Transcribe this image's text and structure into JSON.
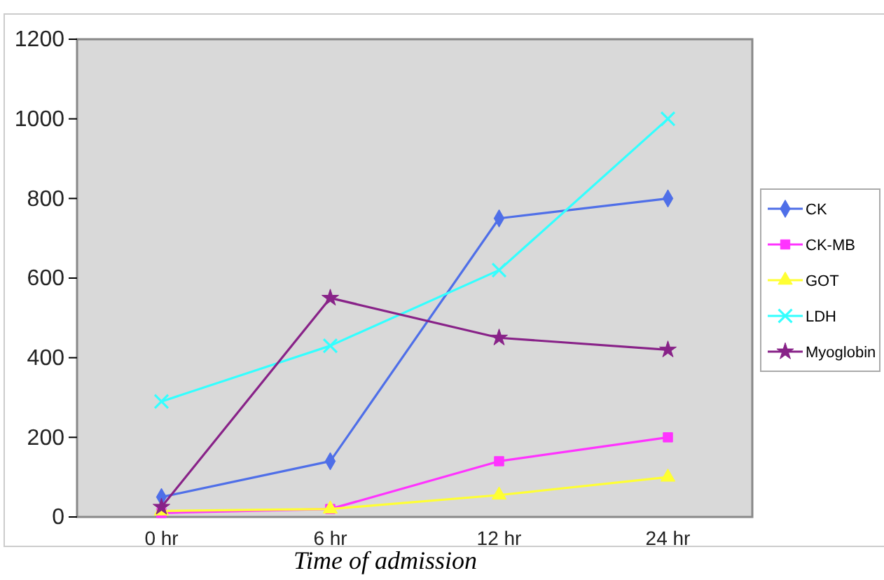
{
  "chart_data": {
    "type": "line",
    "xlabel": "Time of admission",
    "categories": [
      "0 hr",
      "6 hr",
      "12 hr",
      "24 hr"
    ],
    "ylim": [
      0,
      1200
    ],
    "yticks": [
      0,
      200,
      400,
      600,
      800,
      1000,
      1200
    ],
    "grid": false,
    "legend": "right",
    "series": [
      {
        "name": "CK",
        "color": "#4f6fe8",
        "marker": "diamond",
        "values": [
          50,
          140,
          750,
          800
        ]
      },
      {
        "name": "CK-MB",
        "color": "#ff33ff",
        "marker": "square",
        "values": [
          10,
          20,
          140,
          200
        ]
      },
      {
        "name": "GOT",
        "color": "#ffff33",
        "marker": "triangle",
        "values": [
          15,
          20,
          55,
          100
        ]
      },
      {
        "name": "LDH",
        "color": "#33ffff",
        "marker": "cross",
        "values": [
          290,
          430,
          620,
          1000
        ]
      },
      {
        "name": "Myoglobin",
        "color": "#882288",
        "marker": "star",
        "values": [
          25,
          550,
          450,
          420
        ]
      }
    ]
  }
}
